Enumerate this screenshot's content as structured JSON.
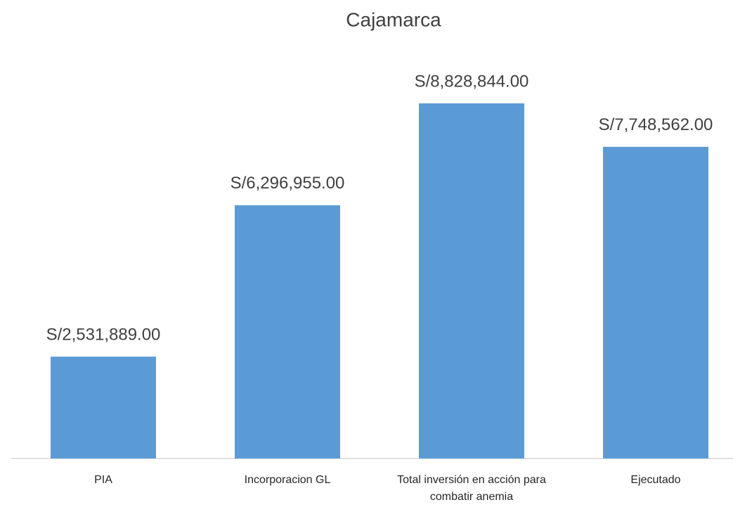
{
  "chart_data": {
    "type": "bar",
    "title": "Cajamarca",
    "categories": [
      "PIA",
      "Incorporacion GL",
      "Total inversión en acción para combatir anemia",
      "Ejecutado"
    ],
    "values": [
      2531889,
      6296955,
      8828844,
      7748562
    ],
    "value_labels": [
      "S/2,531,889.00",
      "S/6,296,955.00",
      "S/8,828,844.00",
      "S/7,748,562.00"
    ],
    "color": "#5b9bd5",
    "ylim": [
      0,
      10000000
    ]
  }
}
